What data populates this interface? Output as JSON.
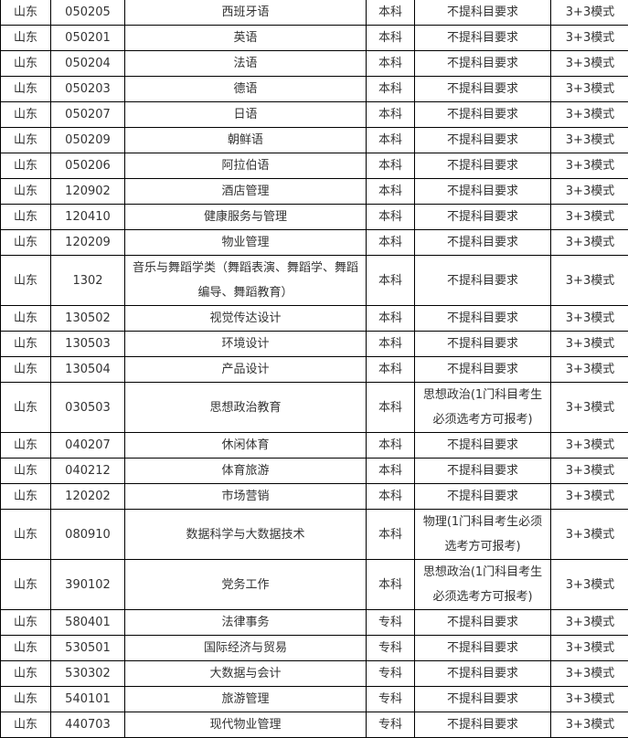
{
  "rows": [
    [
      "山东",
      "050205",
      "西班牙语",
      "本科",
      "不提科目要求",
      "3+3模式"
    ],
    [
      "山东",
      "050201",
      "英语",
      "本科",
      "不提科目要求",
      "3+3模式"
    ],
    [
      "山东",
      "050204",
      "法语",
      "本科",
      "不提科目要求",
      "3+3模式"
    ],
    [
      "山东",
      "050203",
      "德语",
      "本科",
      "不提科目要求",
      "3+3模式"
    ],
    [
      "山东",
      "050207",
      "日语",
      "本科",
      "不提科目要求",
      "3+3模式"
    ],
    [
      "山东",
      "050209",
      "朝鲜语",
      "本科",
      "不提科目要求",
      "3+3模式"
    ],
    [
      "山东",
      "050206",
      "阿拉伯语",
      "本科",
      "不提科目要求",
      "3+3模式"
    ],
    [
      "山东",
      "120902",
      "酒店管理",
      "本科",
      "不提科目要求",
      "3+3模式"
    ],
    [
      "山东",
      "120410",
      "健康服务与管理",
      "本科",
      "不提科目要求",
      "3+3模式"
    ],
    [
      "山东",
      "120209",
      "物业管理",
      "本科",
      "不提科目要求",
      "3+3模式"
    ],
    [
      "山东",
      "1302",
      "音乐与舞蹈学类（舞蹈表演、舞蹈学、舞蹈编导、舞蹈教育）",
      "本科",
      "不提科目要求",
      "3+3模式"
    ],
    [
      "山东",
      "130502",
      "视觉传达设计",
      "本科",
      "不提科目要求",
      "3+3模式"
    ],
    [
      "山东",
      "130503",
      "环境设计",
      "本科",
      "不提科目要求",
      "3+3模式"
    ],
    [
      "山东",
      "130504",
      "产品设计",
      "本科",
      "不提科目要求",
      "3+3模式"
    ],
    [
      "山东",
      "030503",
      "思想政治教育",
      "本科",
      "思想政治(1门科目考生必须选考方可报考)",
      "3+3模式"
    ],
    [
      "山东",
      "040207",
      "休闲体育",
      "本科",
      "不提科目要求",
      "3+3模式"
    ],
    [
      "山东",
      "040212",
      "体育旅游",
      "本科",
      "不提科目要求",
      "3+3模式"
    ],
    [
      "山东",
      "120202",
      "市场营销",
      "本科",
      "不提科目要求",
      "3+3模式"
    ],
    [
      "山东",
      "080910",
      "数据科学与大数据技术",
      "本科",
      "物理(1门科目考生必须选考方可报考)",
      "3+3模式"
    ],
    [
      "山东",
      "390102",
      "党务工作",
      "本科",
      "思想政治(1门科目考生必须选考方可报考)",
      "3+3模式"
    ],
    [
      "山东",
      "580401",
      "法律事务",
      "专科",
      "不提科目要求",
      "3+3模式"
    ],
    [
      "山东",
      "530501",
      "国际经济与贸易",
      "专科",
      "不提科目要求",
      "3+3模式"
    ],
    [
      "山东",
      "530302",
      "大数据与会计",
      "专科",
      "不提科目要求",
      "3+3模式"
    ],
    [
      "山东",
      "540101",
      "旅游管理",
      "专科",
      "不提科目要求",
      "3+3模式"
    ],
    [
      "山东",
      "440703",
      "现代物业管理",
      "专科",
      "不提科目要求",
      "3+3模式"
    ]
  ]
}
